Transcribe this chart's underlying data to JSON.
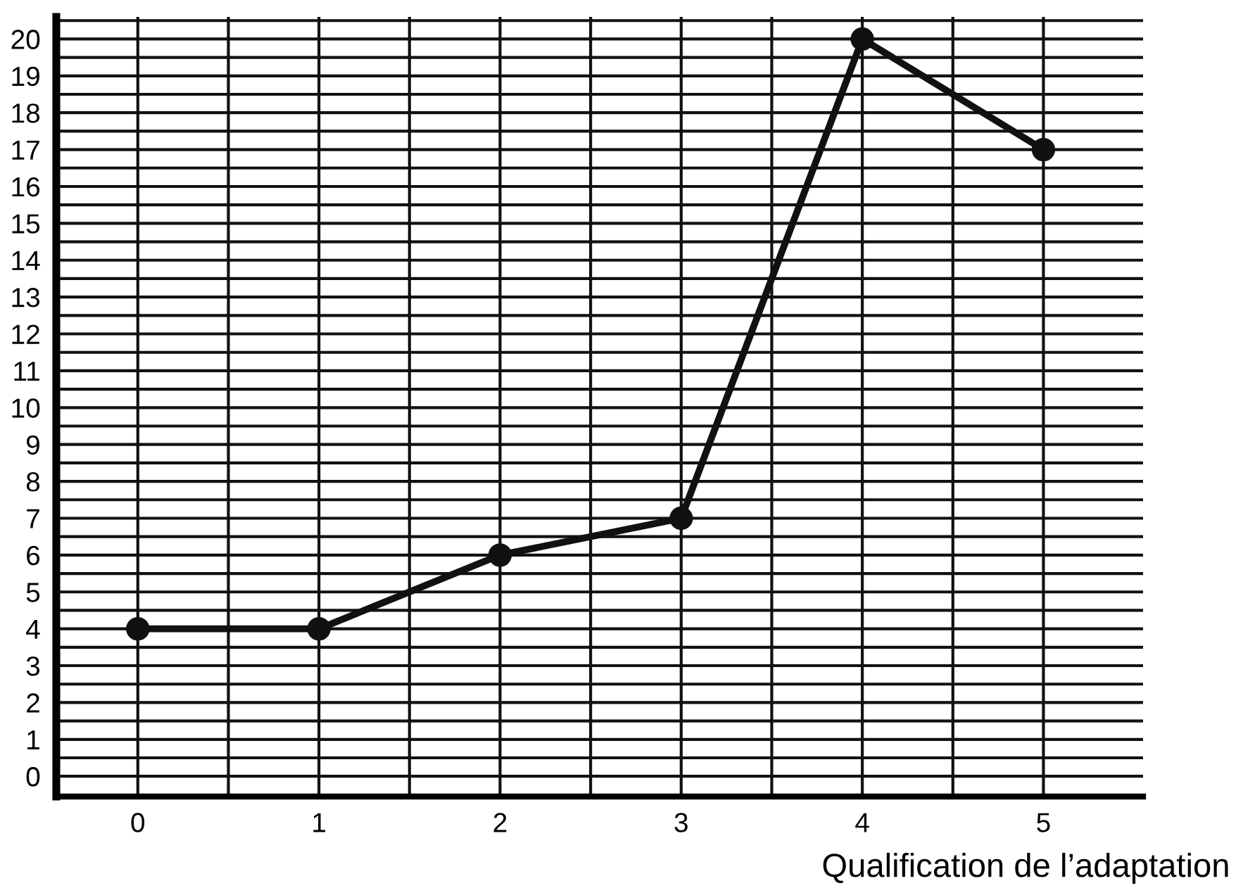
{
  "chart_data": {
    "type": "line",
    "xlabel": "Qualification de l’adaptation",
    "x": [
      0,
      1,
      2,
      3,
      4,
      5
    ],
    "series": [
      {
        "color": "#111111",
        "values": [
          4,
          4,
          6,
          7,
          20,
          17
        ]
      }
    ],
    "xlim": [
      -0.45,
      5.55
    ],
    "ylim": [
      -0.55,
      20.6
    ],
    "xticks": [
      0,
      1,
      2,
      3,
      4,
      5,
      {
        "value": 0.5,
        "label": null
      },
      {
        "value": 1.5,
        "label": null
      },
      {
        "value": 2.5,
        "label": null
      },
      {
        "value": 3.5,
        "label": null
      },
      {
        "value": 4.5,
        "label": null
      }
    ],
    "yticks": [
      0,
      1,
      2,
      3,
      4,
      5,
      6,
      7,
      8,
      9,
      10,
      11,
      12,
      13,
      14,
      15,
      16,
      17,
      18,
      19,
      20,
      {
        "value": 0.5,
        "label": null
      },
      {
        "value": 1.5,
        "label": null
      },
      {
        "value": 2.5,
        "label": null
      },
      {
        "value": 3.5,
        "label": null
      },
      {
        "value": 4.5,
        "label": null
      },
      {
        "value": 5.5,
        "label": null
      },
      {
        "value": 6.5,
        "label": null
      },
      {
        "value": 7.5,
        "label": null
      },
      {
        "value": 8.5,
        "label": null
      },
      {
        "value": 9.5,
        "label": null
      },
      {
        "value": 10.5,
        "label": null
      },
      {
        "value": 11.5,
        "label": null
      },
      {
        "value": 12.5,
        "label": null
      },
      {
        "value": 13.5,
        "label": null
      },
      {
        "value": 14.5,
        "label": null
      },
      {
        "value": 15.5,
        "label": null
      },
      {
        "value": 16.5,
        "label": null
      },
      {
        "value": 17.5,
        "label": null
      },
      {
        "value": 18.5,
        "label": null
      },
      {
        "value": 19.5,
        "label": null
      },
      {
        "value": 20.5,
        "label": null
      }
    ],
    "grid": true,
    "marker": "circle",
    "line_style": "solid"
  }
}
